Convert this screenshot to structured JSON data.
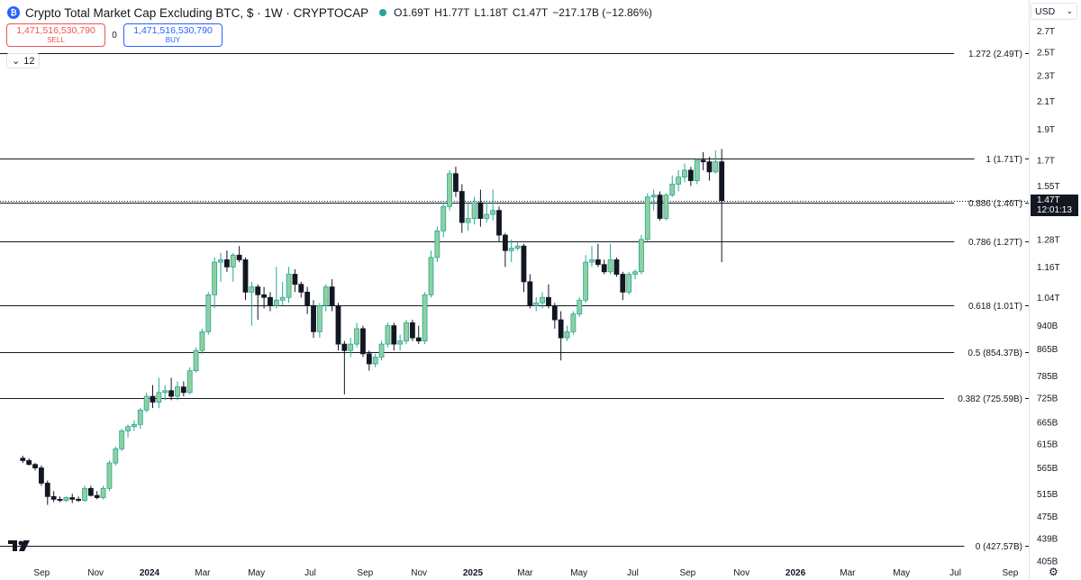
{
  "header": {
    "title": "Crypto Total Market Cap Excluding BTC, $ · 1W · CRYPTOCAP",
    "open": "O1.69T",
    "high": "H1.77T",
    "low": "L1.18T",
    "close": "C1.47T",
    "change": "−217.17B (−12.86%)",
    "status_color": "#26a69a"
  },
  "trade": {
    "sell_price": "1,471,516,530,790",
    "sell_label": "SELL",
    "spread": "0",
    "buy_price": "1,471,516,530,790",
    "buy_label": "BUY"
  },
  "indicator_toggle": "12",
  "currency": "USD",
  "last_price": {
    "value": "1.47T",
    "countdown": "12:01:13"
  },
  "colors": {
    "up": "#26a69a",
    "up_fill": "#8fd19e",
    "down": "#131722",
    "line": "#131722"
  },
  "chart_data": {
    "type": "candlestick",
    "timeframe": "1W",
    "y_scale": "log",
    "ylim": [
      405,
      3000
    ],
    "yaxis_ticks": [
      {
        "label": "2.7T",
        "value": 2700
      },
      {
        "label": "2.5T",
        "value": 2500
      },
      {
        "label": "2.3T",
        "value": 2300
      },
      {
        "label": "2.1T",
        "value": 2100
      },
      {
        "label": "1.9T",
        "value": 1900
      },
      {
        "label": "1.7T",
        "value": 1700
      },
      {
        "label": "1.55T",
        "value": 1550
      },
      {
        "label": "1.28T",
        "value": 1280
      },
      {
        "label": "1.16T",
        "value": 1160
      },
      {
        "label": "1.04T",
        "value": 1040
      },
      {
        "label": "940B",
        "value": 940
      },
      {
        "label": "865B",
        "value": 865
      },
      {
        "label": "785B",
        "value": 785
      },
      {
        "label": "725B",
        "value": 725
      },
      {
        "label": "665B",
        "value": 665
      },
      {
        "label": "615B",
        "value": 615
      },
      {
        "label": "565B",
        "value": 565
      },
      {
        "label": "515B",
        "value": 515
      },
      {
        "label": "475B",
        "value": 475
      },
      {
        "label": "439B",
        "value": 439
      },
      {
        "label": "405B",
        "value": 405
      }
    ],
    "xaxis_ticks": [
      {
        "label": "Sep",
        "date": "2023-09-01",
        "year": false
      },
      {
        "label": "Nov",
        "date": "2023-11-01",
        "year": false
      },
      {
        "label": "2024",
        "date": "2024-01-01",
        "year": true
      },
      {
        "label": "Mar",
        "date": "2024-03-01",
        "year": false
      },
      {
        "label": "May",
        "date": "2024-05-01",
        "year": false
      },
      {
        "label": "Jul",
        "date": "2024-07-01",
        "year": false
      },
      {
        "label": "Sep",
        "date": "2024-09-01",
        "year": false
      },
      {
        "label": "Nov",
        "date": "2024-11-01",
        "year": false
      },
      {
        "label": "2025",
        "date": "2025-01-01",
        "year": true
      },
      {
        "label": "Mar",
        "date": "2025-03-01",
        "year": false
      },
      {
        "label": "May",
        "date": "2025-05-01",
        "year": false
      },
      {
        "label": "Jul",
        "date": "2025-07-01",
        "year": false
      },
      {
        "label": "Sep",
        "date": "2025-09-01",
        "year": false
      },
      {
        "label": "Nov",
        "date": "2025-11-01",
        "year": false
      },
      {
        "label": "2026",
        "date": "2026-01-01",
        "year": true
      },
      {
        "label": "Mar",
        "date": "2026-03-01",
        "year": false
      },
      {
        "label": "May",
        "date": "2026-05-01",
        "year": false
      },
      {
        "label": "Jul",
        "date": "2026-07-01",
        "year": false
      },
      {
        "label": "Sep",
        "date": "2026-09-01",
        "year": false
      }
    ],
    "fib_levels": [
      {
        "label": "1.272 (2.49T)",
        "value": 2490
      },
      {
        "label": "1 (1.71T)",
        "value": 1710
      },
      {
        "label": "0.886 (1.46T)",
        "value": 1460
      },
      {
        "label": "0.786 (1.27T)",
        "value": 1270
      },
      {
        "label": "0.618 (1.01T)",
        "value": 1010
      },
      {
        "label": "0.5 (854.37B)",
        "value": 854.37
      },
      {
        "label": "0.382 (725.59B)",
        "value": 725.59
      },
      {
        "label": "0 (427.57B)",
        "value": 427.57
      }
    ],
    "candles_units": "billions USD",
    "candles": [
      {
        "d": "2023-08-07",
        "o": 585,
        "h": 590,
        "l": 575,
        "c": 580
      },
      {
        "d": "2023-08-14",
        "o": 580,
        "h": 585,
        "l": 570,
        "c": 572
      },
      {
        "d": "2023-08-21",
        "o": 572,
        "h": 575,
        "l": 560,
        "c": 565
      },
      {
        "d": "2023-08-28",
        "o": 565,
        "h": 570,
        "l": 530,
        "c": 535
      },
      {
        "d": "2023-09-04",
        "o": 535,
        "h": 540,
        "l": 495,
        "c": 510
      },
      {
        "d": "2023-09-11",
        "o": 510,
        "h": 520,
        "l": 500,
        "c": 505
      },
      {
        "d": "2023-09-18",
        "o": 505,
        "h": 510,
        "l": 500,
        "c": 503
      },
      {
        "d": "2023-09-25",
        "o": 503,
        "h": 510,
        "l": 500,
        "c": 508
      },
      {
        "d": "2023-10-02",
        "o": 508,
        "h": 515,
        "l": 498,
        "c": 505
      },
      {
        "d": "2023-10-09",
        "o": 505,
        "h": 510,
        "l": 500,
        "c": 503
      },
      {
        "d": "2023-10-16",
        "o": 503,
        "h": 530,
        "l": 500,
        "c": 525
      },
      {
        "d": "2023-10-23",
        "o": 525,
        "h": 530,
        "l": 510,
        "c": 512
      },
      {
        "d": "2023-10-30",
        "o": 512,
        "h": 520,
        "l": 505,
        "c": 508
      },
      {
        "d": "2023-11-06",
        "o": 508,
        "h": 530,
        "l": 505,
        "c": 525
      },
      {
        "d": "2023-11-13",
        "o": 525,
        "h": 580,
        "l": 520,
        "c": 575
      },
      {
        "d": "2023-11-20",
        "o": 575,
        "h": 610,
        "l": 570,
        "c": 605
      },
      {
        "d": "2023-11-27",
        "o": 605,
        "h": 650,
        "l": 600,
        "c": 645
      },
      {
        "d": "2023-12-04",
        "o": 645,
        "h": 660,
        "l": 630,
        "c": 655
      },
      {
        "d": "2023-12-11",
        "o": 655,
        "h": 670,
        "l": 645,
        "c": 660
      },
      {
        "d": "2023-12-18",
        "o": 660,
        "h": 700,
        "l": 650,
        "c": 695
      },
      {
        "d": "2023-12-25",
        "o": 695,
        "h": 740,
        "l": 690,
        "c": 730
      },
      {
        "d": "2024-01-01",
        "o": 730,
        "h": 760,
        "l": 700,
        "c": 715
      },
      {
        "d": "2024-01-08",
        "o": 715,
        "h": 780,
        "l": 700,
        "c": 740
      },
      {
        "d": "2024-01-15",
        "o": 740,
        "h": 760,
        "l": 720,
        "c": 745
      },
      {
        "d": "2024-01-22",
        "o": 745,
        "h": 780,
        "l": 720,
        "c": 730
      },
      {
        "d": "2024-01-29",
        "o": 730,
        "h": 770,
        "l": 720,
        "c": 755
      },
      {
        "d": "2024-02-05",
        "o": 755,
        "h": 770,
        "l": 730,
        "c": 740
      },
      {
        "d": "2024-02-12",
        "o": 740,
        "h": 810,
        "l": 735,
        "c": 800
      },
      {
        "d": "2024-02-19",
        "o": 800,
        "h": 870,
        "l": 795,
        "c": 860
      },
      {
        "d": "2024-02-26",
        "o": 860,
        "h": 930,
        "l": 850,
        "c": 920
      },
      {
        "d": "2024-03-04",
        "o": 920,
        "h": 1060,
        "l": 910,
        "c": 1050
      },
      {
        "d": "2024-03-11",
        "o": 1050,
        "h": 1200,
        "l": 1000,
        "c": 1180
      },
      {
        "d": "2024-03-18",
        "o": 1180,
        "h": 1220,
        "l": 1100,
        "c": 1190
      },
      {
        "d": "2024-03-25",
        "o": 1190,
        "h": 1230,
        "l": 1140,
        "c": 1160
      },
      {
        "d": "2024-04-01",
        "o": 1160,
        "h": 1220,
        "l": 1100,
        "c": 1210
      },
      {
        "d": "2024-04-08",
        "o": 1210,
        "h": 1250,
        "l": 1180,
        "c": 1190
      },
      {
        "d": "2024-04-15",
        "o": 1190,
        "h": 1200,
        "l": 1030,
        "c": 1060
      },
      {
        "d": "2024-04-22",
        "o": 1060,
        "h": 1100,
        "l": 940,
        "c": 1080
      },
      {
        "d": "2024-04-29",
        "o": 1080,
        "h": 1090,
        "l": 960,
        "c": 1050
      },
      {
        "d": "2024-05-06",
        "o": 1050,
        "h": 1080,
        "l": 1000,
        "c": 1040
      },
      {
        "d": "2024-05-13",
        "o": 1040,
        "h": 1060,
        "l": 990,
        "c": 1010
      },
      {
        "d": "2024-05-20",
        "o": 1010,
        "h": 1160,
        "l": 1000,
        "c": 1030
      },
      {
        "d": "2024-05-27",
        "o": 1030,
        "h": 1100,
        "l": 1010,
        "c": 1040
      },
      {
        "d": "2024-06-03",
        "o": 1040,
        "h": 1160,
        "l": 1020,
        "c": 1130
      },
      {
        "d": "2024-06-10",
        "o": 1130,
        "h": 1150,
        "l": 1060,
        "c": 1090
      },
      {
        "d": "2024-06-17",
        "o": 1090,
        "h": 1100,
        "l": 1040,
        "c": 1060
      },
      {
        "d": "2024-06-24",
        "o": 1060,
        "h": 1080,
        "l": 980,
        "c": 1010
      },
      {
        "d": "2024-07-01",
        "o": 1010,
        "h": 1030,
        "l": 900,
        "c": 920
      },
      {
        "d": "2024-07-08",
        "o": 920,
        "h": 1020,
        "l": 900,
        "c": 1010
      },
      {
        "d": "2024-07-15",
        "o": 1010,
        "h": 1090,
        "l": 990,
        "c": 1080
      },
      {
        "d": "2024-07-22",
        "o": 1080,
        "h": 1110,
        "l": 990,
        "c": 1010
      },
      {
        "d": "2024-07-29",
        "o": 1010,
        "h": 1020,
        "l": 860,
        "c": 880
      },
      {
        "d": "2024-08-05",
        "o": 880,
        "h": 890,
        "l": 735,
        "c": 860
      },
      {
        "d": "2024-08-12",
        "o": 860,
        "h": 900,
        "l": 840,
        "c": 880
      },
      {
        "d": "2024-08-19",
        "o": 880,
        "h": 950,
        "l": 870,
        "c": 930
      },
      {
        "d": "2024-08-26",
        "o": 930,
        "h": 940,
        "l": 840,
        "c": 850
      },
      {
        "d": "2024-09-02",
        "o": 850,
        "h": 860,
        "l": 800,
        "c": 820
      },
      {
        "d": "2024-09-09",
        "o": 820,
        "h": 850,
        "l": 810,
        "c": 840
      },
      {
        "d": "2024-09-16",
        "o": 840,
        "h": 890,
        "l": 830,
        "c": 880
      },
      {
        "d": "2024-09-23",
        "o": 880,
        "h": 950,
        "l": 870,
        "c": 940
      },
      {
        "d": "2024-09-30",
        "o": 940,
        "h": 950,
        "l": 860,
        "c": 880
      },
      {
        "d": "2024-10-07",
        "o": 880,
        "h": 910,
        "l": 860,
        "c": 890
      },
      {
        "d": "2024-10-14",
        "o": 890,
        "h": 960,
        "l": 880,
        "c": 950
      },
      {
        "d": "2024-10-21",
        "o": 950,
        "h": 960,
        "l": 890,
        "c": 900
      },
      {
        "d": "2024-10-28",
        "o": 900,
        "h": 940,
        "l": 880,
        "c": 890
      },
      {
        "d": "2024-11-04",
        "o": 890,
        "h": 1060,
        "l": 880,
        "c": 1050
      },
      {
        "d": "2024-11-11",
        "o": 1050,
        "h": 1230,
        "l": 1040,
        "c": 1200
      },
      {
        "d": "2024-11-18",
        "o": 1200,
        "h": 1340,
        "l": 1180,
        "c": 1320
      },
      {
        "d": "2024-11-25",
        "o": 1320,
        "h": 1460,
        "l": 1290,
        "c": 1440
      },
      {
        "d": "2024-12-02",
        "o": 1440,
        "h": 1640,
        "l": 1420,
        "c": 1620
      },
      {
        "d": "2024-12-09",
        "o": 1620,
        "h": 1660,
        "l": 1490,
        "c": 1520
      },
      {
        "d": "2024-12-16",
        "o": 1520,
        "h": 1560,
        "l": 1310,
        "c": 1360
      },
      {
        "d": "2024-12-23",
        "o": 1360,
        "h": 1470,
        "l": 1320,
        "c": 1380
      },
      {
        "d": "2024-12-30",
        "o": 1380,
        "h": 1490,
        "l": 1350,
        "c": 1460
      },
      {
        "d": "2025-01-06",
        "o": 1460,
        "h": 1530,
        "l": 1340,
        "c": 1380
      },
      {
        "d": "2025-01-13",
        "o": 1380,
        "h": 1460,
        "l": 1360,
        "c": 1400
      },
      {
        "d": "2025-01-20",
        "o": 1400,
        "h": 1530,
        "l": 1370,
        "c": 1420
      },
      {
        "d": "2025-01-27",
        "o": 1420,
        "h": 1440,
        "l": 1270,
        "c": 1300
      },
      {
        "d": "2025-02-03",
        "o": 1300,
        "h": 1310,
        "l": 1160,
        "c": 1230
      },
      {
        "d": "2025-02-10",
        "o": 1230,
        "h": 1280,
        "l": 1180,
        "c": 1240
      },
      {
        "d": "2025-02-17",
        "o": 1240,
        "h": 1270,
        "l": 1230,
        "c": 1250
      },
      {
        "d": "2025-02-24",
        "o": 1250,
        "h": 1260,
        "l": 1060,
        "c": 1100
      },
      {
        "d": "2025-03-03",
        "o": 1100,
        "h": 1130,
        "l": 1000,
        "c": 1010
      },
      {
        "d": "2025-03-10",
        "o": 1010,
        "h": 1040,
        "l": 990,
        "c": 1020
      },
      {
        "d": "2025-03-17",
        "o": 1020,
        "h": 1060,
        "l": 1000,
        "c": 1040
      },
      {
        "d": "2025-03-24",
        "o": 1040,
        "h": 1090,
        "l": 1000,
        "c": 1010
      },
      {
        "d": "2025-03-31",
        "o": 1010,
        "h": 1020,
        "l": 930,
        "c": 960
      },
      {
        "d": "2025-04-07",
        "o": 960,
        "h": 990,
        "l": 830,
        "c": 900
      },
      {
        "d": "2025-04-14",
        "o": 900,
        "h": 940,
        "l": 890,
        "c": 920
      },
      {
        "d": "2025-04-21",
        "o": 920,
        "h": 990,
        "l": 910,
        "c": 980
      },
      {
        "d": "2025-04-28",
        "o": 980,
        "h": 1040,
        "l": 970,
        "c": 1030
      },
      {
        "d": "2025-05-05",
        "o": 1030,
        "h": 1210,
        "l": 1020,
        "c": 1180
      },
      {
        "d": "2025-05-12",
        "o": 1180,
        "h": 1250,
        "l": 1160,
        "c": 1190
      },
      {
        "d": "2025-05-19",
        "o": 1190,
        "h": 1260,
        "l": 1160,
        "c": 1170
      },
      {
        "d": "2025-05-26",
        "o": 1170,
        "h": 1190,
        "l": 1130,
        "c": 1140
      },
      {
        "d": "2025-06-02",
        "o": 1140,
        "h": 1260,
        "l": 1130,
        "c": 1190
      },
      {
        "d": "2025-06-09",
        "o": 1190,
        "h": 1200,
        "l": 1120,
        "c": 1130
      },
      {
        "d": "2025-06-16",
        "o": 1130,
        "h": 1140,
        "l": 1030,
        "c": 1060
      },
      {
        "d": "2025-06-23",
        "o": 1060,
        "h": 1140,
        "l": 1050,
        "c": 1130
      },
      {
        "d": "2025-06-30",
        "o": 1130,
        "h": 1150,
        "l": 1110,
        "c": 1140
      },
      {
        "d": "2025-07-07",
        "o": 1140,
        "h": 1300,
        "l": 1130,
        "c": 1280
      },
      {
        "d": "2025-07-14",
        "o": 1280,
        "h": 1510,
        "l": 1270,
        "c": 1490
      },
      {
        "d": "2025-07-21",
        "o": 1490,
        "h": 1530,
        "l": 1420,
        "c": 1500
      },
      {
        "d": "2025-07-28",
        "o": 1500,
        "h": 1520,
        "l": 1370,
        "c": 1380
      },
      {
        "d": "2025-08-04",
        "o": 1380,
        "h": 1510,
        "l": 1370,
        "c": 1500
      },
      {
        "d": "2025-08-11",
        "o": 1500,
        "h": 1610,
        "l": 1490,
        "c": 1560
      },
      {
        "d": "2025-08-18",
        "o": 1560,
        "h": 1640,
        "l": 1520,
        "c": 1600
      },
      {
        "d": "2025-08-25",
        "o": 1600,
        "h": 1680,
        "l": 1570,
        "c": 1640
      },
      {
        "d": "2025-09-01",
        "o": 1640,
        "h": 1660,
        "l": 1550,
        "c": 1580
      },
      {
        "d": "2025-09-08",
        "o": 1580,
        "h": 1710,
        "l": 1560,
        "c": 1700
      },
      {
        "d": "2025-09-15",
        "o": 1700,
        "h": 1750,
        "l": 1640,
        "c": 1690
      },
      {
        "d": "2025-09-22",
        "o": 1690,
        "h": 1720,
        "l": 1580,
        "c": 1630
      },
      {
        "d": "2025-09-29",
        "o": 1630,
        "h": 1760,
        "l": 1620,
        "c": 1690
      },
      {
        "d": "2025-10-06",
        "o": 1690,
        "h": 1770,
        "l": 1180,
        "c": 1470
      }
    ]
  }
}
